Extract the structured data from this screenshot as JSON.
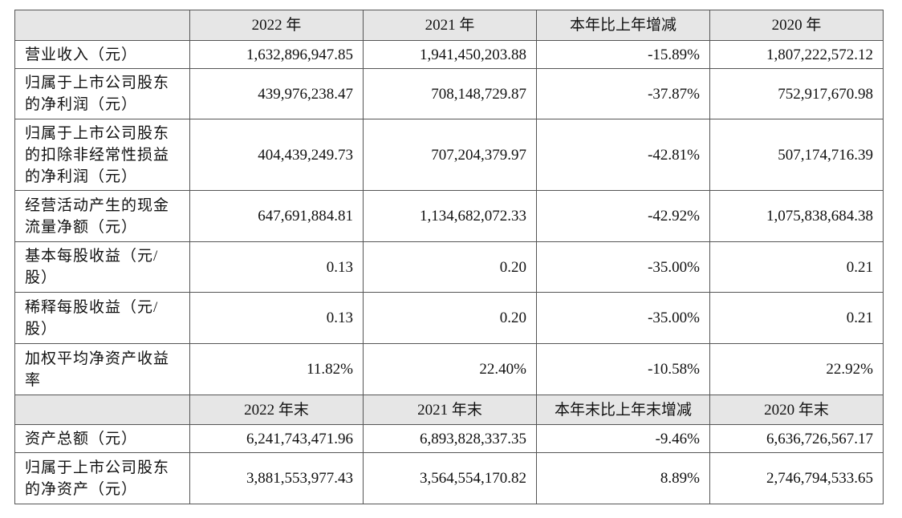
{
  "table": {
    "header": [
      "2022 年",
      "2021 年",
      "本年比上年增减",
      "2020 年"
    ],
    "rows": [
      [
        [
          "营业收入（元）"
        ],
        "1,632,896,947.85",
        "1,941,450,203.88",
        "-15.89%",
        "1,807,222,572.12"
      ],
      [
        [
          "归属于上市公司股东",
          "的净利润（元）"
        ],
        "439,976,238.47",
        "708,148,729.87",
        "-37.87%",
        "752,917,670.98"
      ],
      [
        [
          "归属于上市公司股东",
          "的扣除非经常性损益",
          "的净利润（元）"
        ],
        "404,439,249.73",
        "707,204,379.97",
        "-42.81%",
        "507,174,716.39"
      ],
      [
        [
          "经营活动产生的现金",
          "流量净额（元）"
        ],
        "647,691,884.81",
        "1,134,682,072.33",
        "-42.92%",
        "1,075,838,684.38"
      ],
      [
        [
          "基本每股收益（元/",
          "股）"
        ],
        "0.13",
        "0.20",
        "-35.00%",
        "0.21"
      ],
      [
        [
          "稀释每股收益（元/",
          "股）"
        ],
        "0.13",
        "0.20",
        "-35.00%",
        "0.21"
      ],
      [
        [
          "加权平均净资产收益",
          "率"
        ],
        "11.82%",
        "22.40%",
        "-10.58%",
        "22.92%"
      ]
    ],
    "header2": [
      "2022 年末",
      "2021 年末",
      "本年末比上年末增减",
      "2020 年末"
    ],
    "rows2": [
      [
        [
          "资产总额（元）"
        ],
        "6,241,743,471.96",
        "6,893,828,337.35",
        "-9.46%",
        "6,636,726,567.17"
      ],
      [
        [
          "归属于上市公司股东",
          "的净资产（元）"
        ],
        "3,881,553,977.43",
        "3,564,554,170.82",
        "8.89%",
        "2,746,794,533.65"
      ]
    ]
  }
}
